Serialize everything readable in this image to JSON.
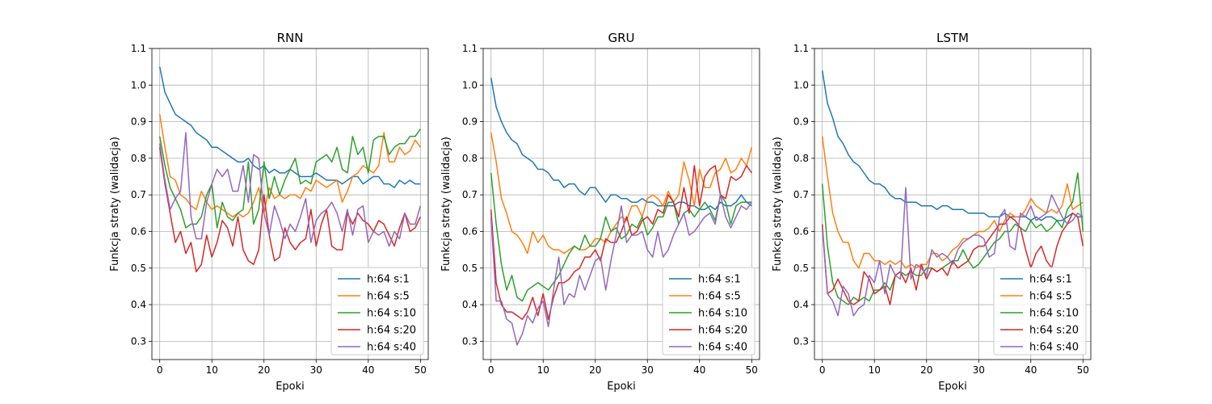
{
  "chart_data": [
    {
      "type": "line",
      "title": "RNN",
      "xlabel": "Epoki",
      "ylabel": "Funkcja straty (walidacja)",
      "xlim": [
        -1.5,
        51.5
      ],
      "ylim": [
        0.25,
        1.1
      ],
      "xticks": [
        0,
        10,
        20,
        30,
        40,
        50
      ],
      "yticks": [
        0.3,
        0.4,
        0.5,
        0.6,
        0.7,
        0.8,
        0.9,
        1.0,
        1.1
      ],
      "grid": true,
      "legend_position": "lower-right",
      "series": [
        {
          "name": "h:64 s:1",
          "color": "#1f77b4",
          "values": [
            1.05,
            0.98,
            0.95,
            0.92,
            0.91,
            0.9,
            0.89,
            0.87,
            0.86,
            0.85,
            0.83,
            0.83,
            0.82,
            0.81,
            0.8,
            0.79,
            0.79,
            0.8,
            0.78,
            0.77,
            0.78,
            0.76,
            0.77,
            0.76,
            0.76,
            0.77,
            0.76,
            0.75,
            0.75,
            0.75,
            0.76,
            0.75,
            0.74,
            0.74,
            0.74,
            0.73,
            0.74,
            0.75,
            0.75,
            0.73,
            0.74,
            0.75,
            0.75,
            0.73,
            0.73,
            0.72,
            0.74,
            0.73,
            0.74,
            0.73,
            0.73
          ]
        },
        {
          "name": "h:64 s:5",
          "color": "#ff7f0e",
          "values": [
            0.92,
            0.83,
            0.75,
            0.74,
            0.7,
            0.69,
            0.67,
            0.66,
            0.71,
            0.68,
            0.66,
            0.67,
            0.66,
            0.65,
            0.64,
            0.65,
            0.64,
            0.65,
            0.68,
            0.72,
            0.65,
            0.72,
            0.69,
            0.7,
            0.69,
            0.7,
            0.7,
            0.69,
            0.72,
            0.71,
            0.74,
            0.73,
            0.72,
            0.73,
            0.74,
            0.68,
            0.71,
            0.75,
            0.76,
            0.78,
            0.77,
            0.76,
            0.78,
            0.87,
            0.79,
            0.79,
            0.83,
            0.81,
            0.82,
            0.85,
            0.83
          ]
        },
        {
          "name": "h:64 s:10",
          "color": "#2ca02c",
          "values": [
            0.86,
            0.78,
            0.72,
            0.69,
            0.66,
            0.61,
            0.62,
            0.62,
            0.64,
            0.7,
            0.73,
            0.61,
            0.68,
            0.64,
            0.63,
            0.65,
            0.66,
            0.79,
            0.62,
            0.66,
            0.79,
            0.69,
            0.75,
            0.7,
            0.74,
            0.77,
            0.8,
            0.73,
            0.74,
            0.73,
            0.79,
            0.8,
            0.81,
            0.79,
            0.83,
            0.77,
            0.76,
            0.86,
            0.81,
            0.83,
            0.76,
            0.85,
            0.86,
            0.86,
            0.81,
            0.83,
            0.84,
            0.84,
            0.86,
            0.86,
            0.88
          ]
        },
        {
          "name": "h:64 s:20",
          "color": "#d62728",
          "values": [
            0.83,
            0.73,
            0.65,
            0.57,
            0.6,
            0.54,
            0.57,
            0.49,
            0.51,
            0.59,
            0.53,
            0.57,
            0.63,
            0.61,
            0.56,
            0.64,
            0.55,
            0.52,
            0.51,
            0.55,
            0.7,
            0.59,
            0.52,
            0.53,
            0.61,
            0.57,
            0.55,
            0.57,
            0.58,
            0.66,
            0.56,
            0.62,
            0.66,
            0.56,
            0.55,
            0.55,
            0.65,
            0.62,
            0.65,
            0.63,
            0.62,
            0.6,
            0.63,
            0.62,
            0.59,
            0.56,
            0.61,
            0.65,
            0.6,
            0.61,
            0.64
          ]
        },
        {
          "name": "h:64 s:40",
          "color": "#9467bd",
          "values": [
            0.84,
            0.74,
            0.66,
            0.69,
            0.71,
            0.87,
            0.64,
            0.58,
            0.58,
            0.68,
            0.73,
            0.77,
            0.75,
            0.77,
            0.71,
            0.71,
            0.78,
            0.68,
            0.81,
            0.8,
            0.65,
            0.59,
            0.67,
            0.63,
            0.58,
            0.62,
            0.6,
            0.64,
            0.69,
            0.57,
            0.63,
            0.65,
            0.66,
            0.68,
            0.65,
            0.6,
            0.66,
            0.59,
            0.66,
            0.67,
            0.57,
            0.6,
            0.59,
            0.6,
            0.56,
            0.6,
            0.58,
            0.65,
            0.62,
            0.62,
            0.67
          ]
        }
      ]
    },
    {
      "type": "line",
      "title": "GRU",
      "xlabel": "Epoki",
      "ylabel": "Funkcja straty (walidacja)",
      "xlim": [
        -1.5,
        51.5
      ],
      "ylim": [
        0.25,
        1.1
      ],
      "xticks": [
        0,
        10,
        20,
        30,
        40,
        50
      ],
      "yticks": [
        0.3,
        0.4,
        0.5,
        0.6,
        0.7,
        0.8,
        0.9,
        1.0,
        1.1
      ],
      "grid": true,
      "legend_position": "lower-right",
      "series": [
        {
          "name": "h:64 s:1",
          "color": "#1f77b4",
          "values": [
            1.02,
            0.94,
            0.9,
            0.87,
            0.85,
            0.84,
            0.81,
            0.8,
            0.79,
            0.77,
            0.77,
            0.76,
            0.74,
            0.74,
            0.72,
            0.73,
            0.73,
            0.71,
            0.7,
            0.72,
            0.72,
            0.7,
            0.68,
            0.7,
            0.7,
            0.69,
            0.69,
            0.68,
            0.68,
            0.69,
            0.68,
            0.68,
            0.67,
            0.67,
            0.67,
            0.67,
            0.68,
            0.68,
            0.67,
            0.67,
            0.66,
            0.66,
            0.67,
            0.66,
            0.68,
            0.67,
            0.67,
            0.68,
            0.7,
            0.68,
            0.67
          ]
        },
        {
          "name": "h:64 s:5",
          "color": "#ff7f0e",
          "values": [
            0.87,
            0.79,
            0.69,
            0.65,
            0.6,
            0.59,
            0.57,
            0.54,
            0.6,
            0.57,
            0.59,
            0.56,
            0.55,
            0.55,
            0.54,
            0.55,
            0.56,
            0.55,
            0.55,
            0.56,
            0.58,
            0.58,
            0.57,
            0.6,
            0.62,
            0.64,
            0.63,
            0.67,
            0.67,
            0.64,
            0.69,
            0.7,
            0.69,
            0.67,
            0.71,
            0.68,
            0.7,
            0.79,
            0.74,
            0.67,
            0.77,
            0.72,
            0.72,
            0.76,
            0.77,
            0.8,
            0.76,
            0.77,
            0.8,
            0.78,
            0.83
          ]
        },
        {
          "name": "h:64 s:10",
          "color": "#2ca02c",
          "values": [
            0.76,
            0.62,
            0.51,
            0.44,
            0.48,
            0.42,
            0.41,
            0.44,
            0.45,
            0.46,
            0.45,
            0.44,
            0.46,
            0.48,
            0.51,
            0.54,
            0.56,
            0.55,
            0.59,
            0.56,
            0.56,
            0.58,
            0.64,
            0.6,
            0.61,
            0.58,
            0.59,
            0.62,
            0.61,
            0.64,
            0.59,
            0.61,
            0.64,
            0.64,
            0.68,
            0.68,
            0.62,
            0.65,
            0.66,
            0.64,
            0.66,
            0.68,
            0.66,
            0.63,
            0.7,
            0.68,
            0.62,
            0.67,
            0.68,
            0.68,
            0.68
          ]
        },
        {
          "name": "h:64 s:20",
          "color": "#d62728",
          "values": [
            0.66,
            0.46,
            0.4,
            0.38,
            0.38,
            0.37,
            0.36,
            0.38,
            0.42,
            0.37,
            0.43,
            0.36,
            0.42,
            0.46,
            0.46,
            0.47,
            0.49,
            0.5,
            0.53,
            0.53,
            0.55,
            0.52,
            0.58,
            0.57,
            0.57,
            0.6,
            0.64,
            0.59,
            0.6,
            0.63,
            0.64,
            0.62,
            0.66,
            0.65,
            0.7,
            0.68,
            0.64,
            0.72,
            0.65,
            0.78,
            0.67,
            0.75,
            0.77,
            0.78,
            0.7,
            0.69,
            0.75,
            0.74,
            0.75,
            0.78,
            0.76
          ]
        },
        {
          "name": "h:64 s:40",
          "color": "#9467bd",
          "values": [
            0.64,
            0.41,
            0.41,
            0.36,
            0.35,
            0.29,
            0.32,
            0.37,
            0.35,
            0.39,
            0.41,
            0.34,
            0.44,
            0.53,
            0.4,
            0.43,
            0.42,
            0.48,
            0.44,
            0.48,
            0.52,
            0.53,
            0.44,
            0.52,
            0.59,
            0.67,
            0.57,
            0.59,
            0.59,
            0.6,
            0.55,
            0.53,
            0.6,
            0.53,
            0.55,
            0.59,
            0.62,
            0.65,
            0.59,
            0.6,
            0.62,
            0.64,
            0.65,
            0.62,
            0.7,
            0.64,
            0.61,
            0.64,
            0.67,
            0.66,
            0.68
          ]
        }
      ]
    },
    {
      "type": "line",
      "title": "LSTM",
      "xlabel": "Epoki",
      "ylabel": "Funkcja straty (walidacja)",
      "xlim": [
        -1.5,
        51.5
      ],
      "ylim": [
        0.25,
        1.1
      ],
      "xticks": [
        0,
        10,
        20,
        30,
        40,
        50
      ],
      "yticks": [
        0.3,
        0.4,
        0.5,
        0.6,
        0.7,
        0.8,
        0.9,
        1.0,
        1.1
      ],
      "grid": true,
      "legend_position": "lower-right",
      "series": [
        {
          "name": "h:64 s:1",
          "color": "#1f77b4",
          "values": [
            1.04,
            0.95,
            0.91,
            0.86,
            0.84,
            0.81,
            0.79,
            0.78,
            0.76,
            0.74,
            0.73,
            0.73,
            0.72,
            0.7,
            0.69,
            0.69,
            0.68,
            0.68,
            0.68,
            0.67,
            0.67,
            0.67,
            0.66,
            0.67,
            0.67,
            0.66,
            0.66,
            0.66,
            0.65,
            0.65,
            0.65,
            0.65,
            0.64,
            0.64,
            0.64,
            0.65,
            0.64,
            0.64,
            0.64,
            0.64,
            0.63,
            0.64,
            0.63,
            0.64,
            0.64,
            0.63,
            0.63,
            0.64,
            0.65,
            0.64,
            0.64
          ]
        },
        {
          "name": "h:64 s:5",
          "color": "#ff7f0e",
          "values": [
            0.86,
            0.75,
            0.65,
            0.6,
            0.57,
            0.57,
            0.52,
            0.5,
            0.54,
            0.54,
            0.52,
            0.52,
            0.51,
            0.52,
            0.51,
            0.52,
            0.5,
            0.51,
            0.5,
            0.51,
            0.51,
            0.54,
            0.54,
            0.52,
            0.53,
            0.55,
            0.56,
            0.58,
            0.58,
            0.59,
            0.6,
            0.6,
            0.61,
            0.63,
            0.6,
            0.63,
            0.65,
            0.64,
            0.64,
            0.66,
            0.69,
            0.67,
            0.66,
            0.65,
            0.66,
            0.65,
            0.67,
            0.73,
            0.66,
            0.67,
            0.68
          ]
        },
        {
          "name": "h:64 s:10",
          "color": "#2ca02c",
          "values": [
            0.73,
            0.56,
            0.46,
            0.42,
            0.41,
            0.4,
            0.42,
            0.41,
            0.42,
            0.41,
            0.44,
            0.44,
            0.46,
            0.44,
            0.48,
            0.49,
            0.48,
            0.49,
            0.48,
            0.48,
            0.5,
            0.5,
            0.49,
            0.5,
            0.51,
            0.52,
            0.52,
            0.55,
            0.52,
            0.5,
            0.51,
            0.53,
            0.55,
            0.57,
            0.58,
            0.6,
            0.6,
            0.62,
            0.61,
            0.6,
            0.63,
            0.61,
            0.62,
            0.6,
            0.61,
            0.63,
            0.61,
            0.66,
            0.68,
            0.76,
            0.6
          ]
        },
        {
          "name": "h:64 s:20",
          "color": "#d62728",
          "values": [
            0.62,
            0.43,
            0.44,
            0.47,
            0.44,
            0.41,
            0.4,
            0.41,
            0.49,
            0.47,
            0.43,
            0.44,
            0.45,
            0.4,
            0.48,
            0.49,
            0.46,
            0.5,
            0.44,
            0.51,
            0.47,
            0.5,
            0.49,
            0.5,
            0.48,
            0.52,
            0.5,
            0.51,
            0.52,
            0.55,
            0.56,
            0.56,
            0.58,
            0.6,
            0.62,
            0.62,
            0.64,
            0.63,
            0.61,
            0.55,
            0.5,
            0.54,
            0.56,
            0.52,
            0.5,
            0.56,
            0.6,
            0.62,
            0.65,
            0.64,
            0.56
          ]
        },
        {
          "name": "h:64 s:40",
          "color": "#9467bd",
          "values": [
            0.61,
            0.43,
            0.41,
            0.37,
            0.45,
            0.43,
            0.37,
            0.39,
            0.4,
            0.48,
            0.46,
            0.52,
            0.43,
            0.51,
            0.48,
            0.47,
            0.72,
            0.47,
            0.51,
            0.5,
            0.48,
            0.55,
            0.53,
            0.54,
            0.53,
            0.51,
            0.55,
            0.57,
            0.58,
            0.59,
            0.59,
            0.58,
            0.53,
            0.54,
            0.64,
            0.66,
            0.56,
            0.55,
            0.65,
            0.64,
            0.67,
            0.63,
            0.64,
            0.65,
            0.7,
            0.67,
            0.64,
            0.62,
            0.63,
            0.65,
            0.64
          ]
        }
      ]
    }
  ]
}
